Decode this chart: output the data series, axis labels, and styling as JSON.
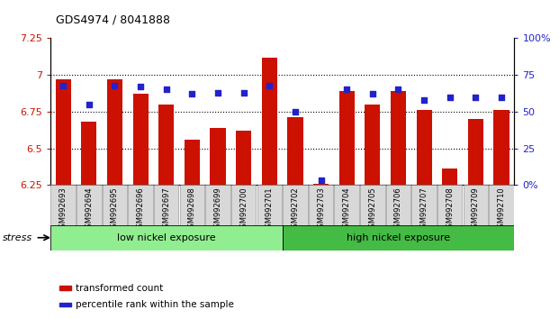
{
  "title": "GDS4974 / 8041888",
  "samples": [
    "GSM992693",
    "GSM992694",
    "GSM992695",
    "GSM992696",
    "GSM992697",
    "GSM992698",
    "GSM992699",
    "GSM992700",
    "GSM992701",
    "GSM992702",
    "GSM992703",
    "GSM992704",
    "GSM992705",
    "GSM992706",
    "GSM992707",
    "GSM992708",
    "GSM992709",
    "GSM992710"
  ],
  "red_values": [
    6.97,
    6.68,
    6.97,
    6.87,
    6.8,
    6.56,
    6.64,
    6.62,
    7.12,
    6.71,
    6.26,
    6.89,
    6.8,
    6.89,
    6.76,
    6.36,
    6.7,
    6.76
  ],
  "blue_values": [
    68,
    55,
    68,
    67,
    65,
    62,
    63,
    63,
    68,
    50,
    3,
    65,
    62,
    65,
    58,
    60,
    60,
    60
  ],
  "ylim_left": [
    6.25,
    7.25
  ],
  "ylim_right": [
    0,
    100
  ],
  "yticks_left": [
    6.25,
    6.5,
    6.75,
    7.0,
    7.25
  ],
  "yticks_right": [
    0,
    25,
    50,
    75,
    100
  ],
  "ytick_labels_left": [
    "6.25",
    "6.5",
    "6.75",
    "7",
    "7.25"
  ],
  "ytick_labels_right": [
    "0%",
    "25",
    "50",
    "75",
    "100%"
  ],
  "hlines": [
    7.0,
    6.75,
    6.5
  ],
  "group_labels": [
    "low nickel exposure",
    "high nickel exposure"
  ],
  "low_range": [
    0,
    8
  ],
  "high_range": [
    9,
    17
  ],
  "low_color": "#90ee90",
  "high_color": "#44bb44",
  "bar_color": "#cc1100",
  "blue_color": "#2222cc",
  "base_value": 6.25,
  "stress_label": "stress",
  "legend_red": "transformed count",
  "legend_blue": "percentile rank within the sample",
  "bar_width": 0.6
}
